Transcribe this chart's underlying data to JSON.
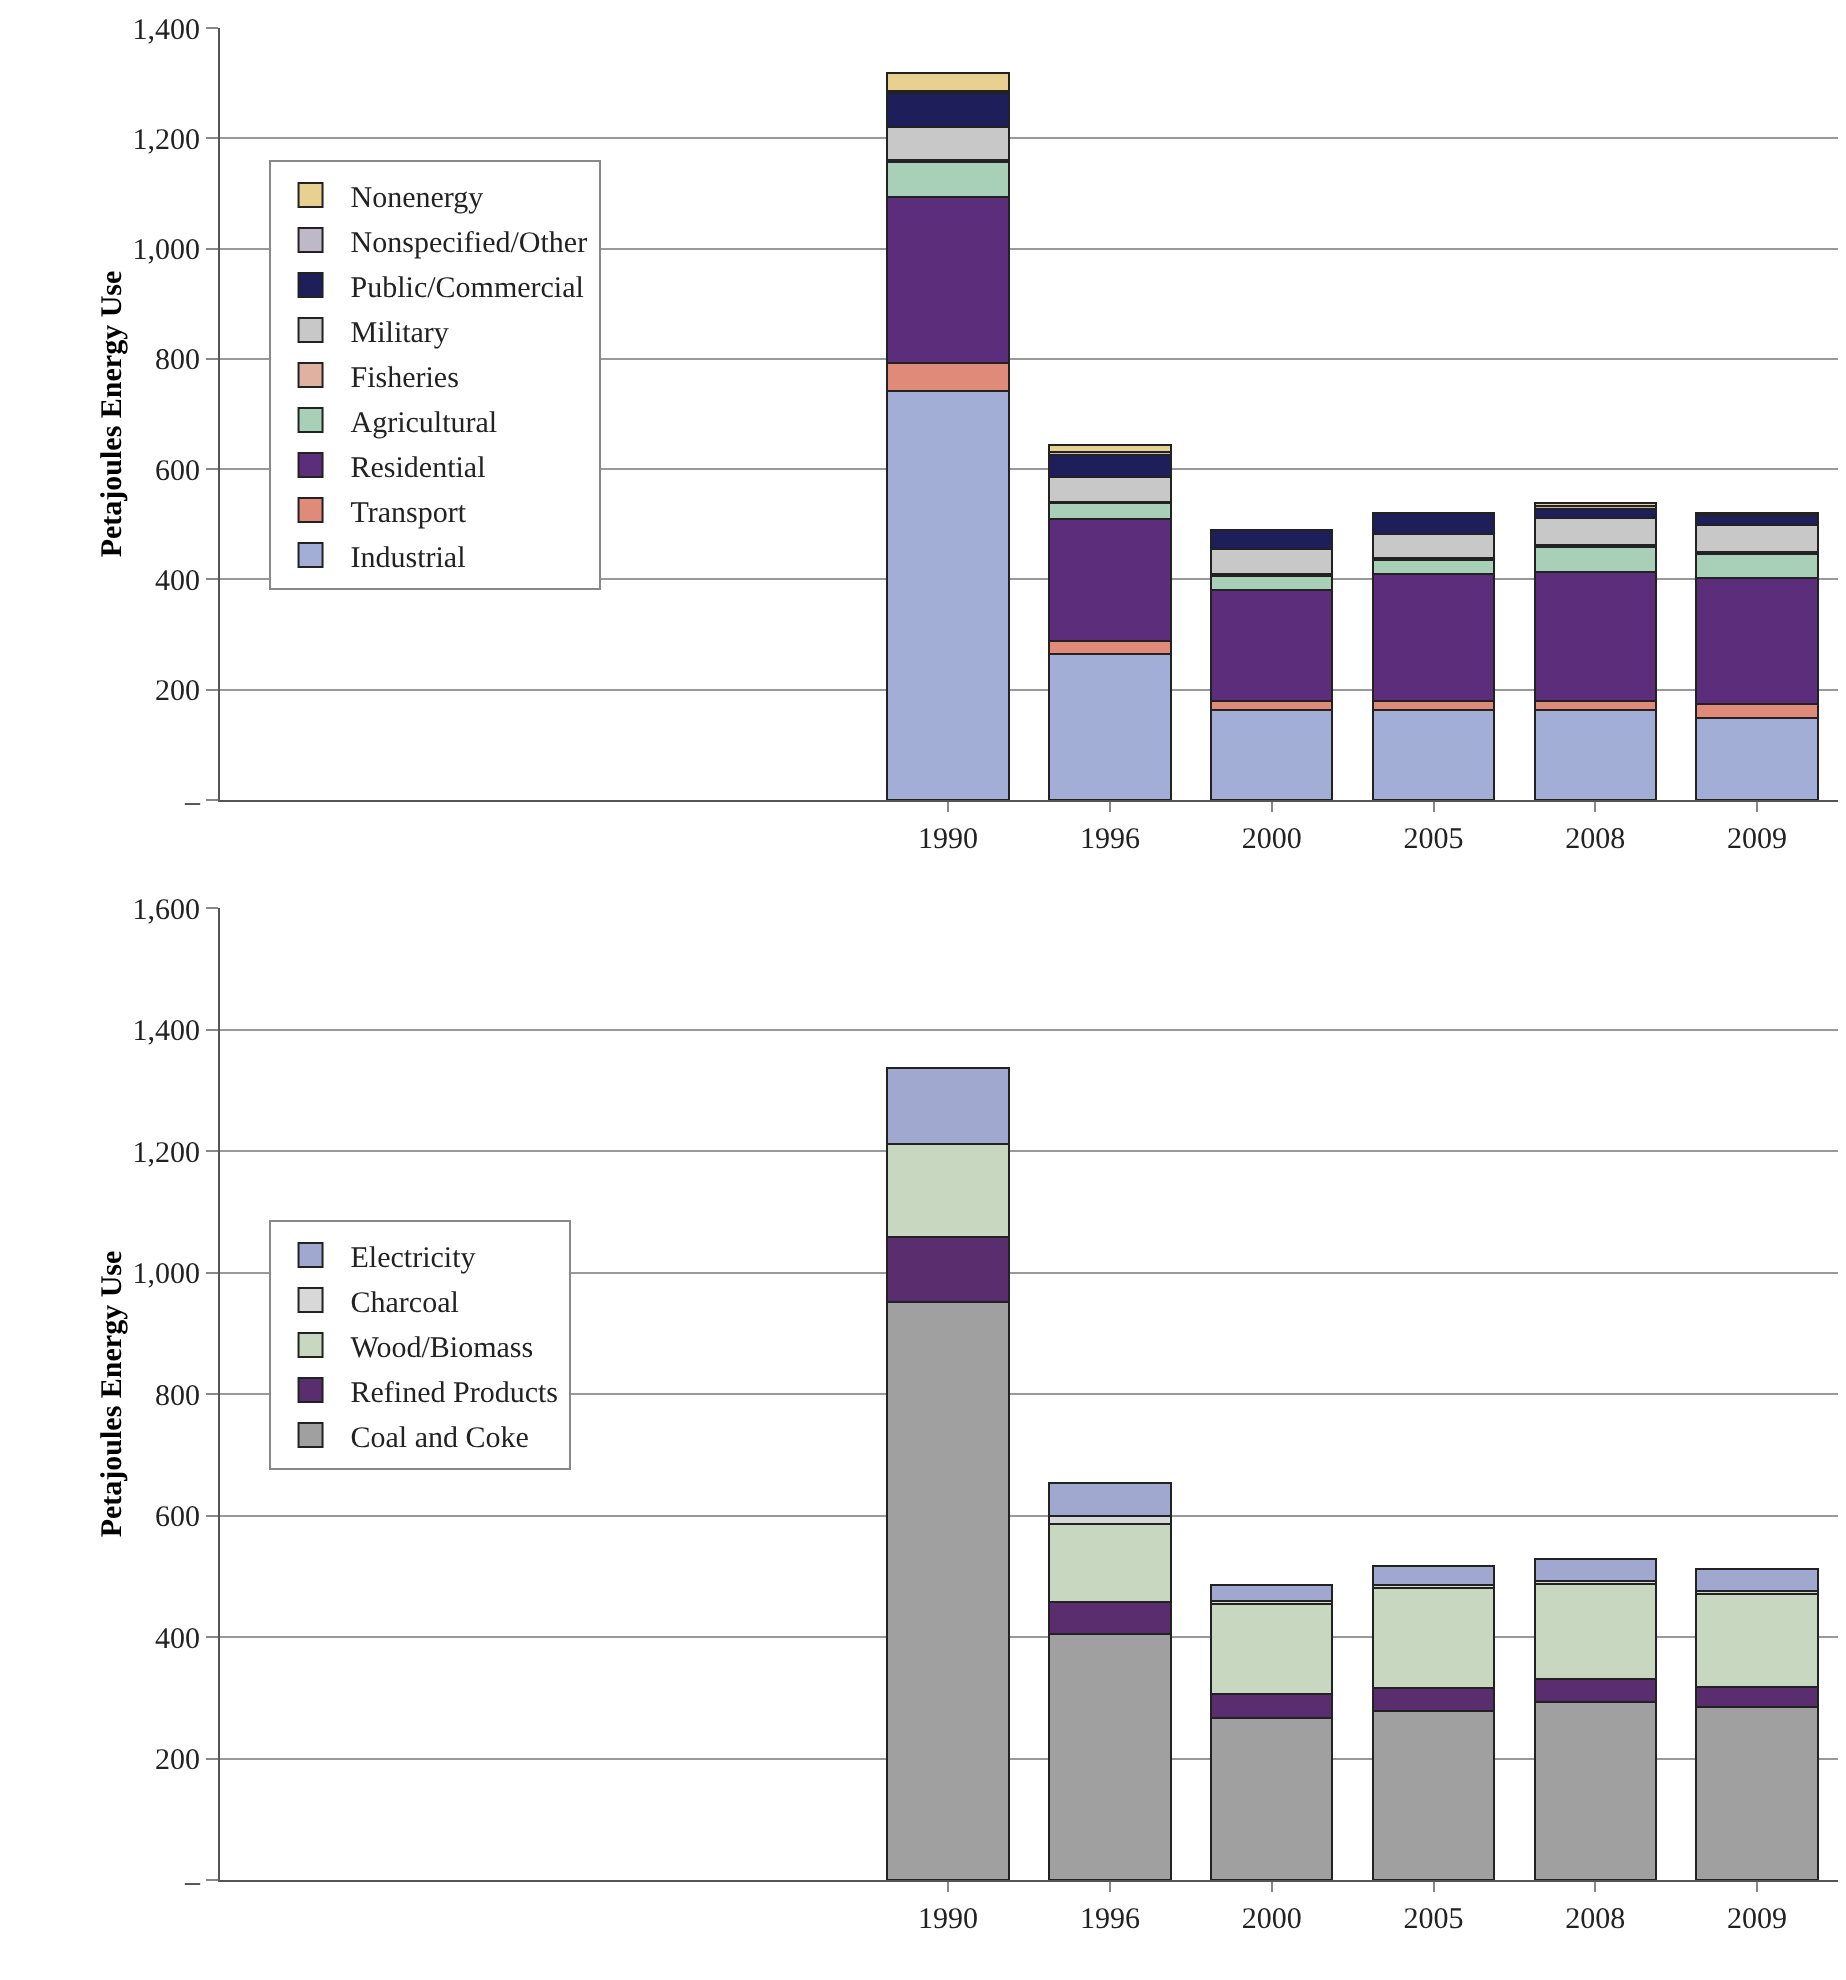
{
  "chart_data": [
    {
      "type": "bar",
      "stacked": true,
      "ylabel": "Petajoules Energy Use",
      "categories": [
        null,
        null,
        null,
        null,
        "1990",
        "1996",
        "2000",
        "2005",
        "2008",
        "2009"
      ],
      "ylim": [
        0,
        1400
      ],
      "yticks": [
        {
          "value": 0,
          "label": "–"
        },
        {
          "value": 200,
          "label": "200"
        },
        {
          "value": 400,
          "label": "400"
        },
        {
          "value": 600,
          "label": "600"
        },
        {
          "value": 800,
          "label": "800"
        },
        {
          "value": 1000,
          "label": "1,000"
        },
        {
          "value": 1200,
          "label": "1,200"
        },
        {
          "value": 1400,
          "label": "1,400"
        }
      ],
      "grid": "y",
      "legend": "left",
      "series": [
        {
          "name": "Industrial",
          "color": "#a3aed6",
          "values": [
            null,
            null,
            null,
            null,
            742,
            265,
            164,
            164,
            164,
            149
          ]
        },
        {
          "name": "Transport",
          "color": "#e08a7a",
          "values": [
            null,
            null,
            null,
            null,
            51,
            24,
            16,
            16,
            16,
            25
          ]
        },
        {
          "name": "Residential",
          "color": "#5b2d7a",
          "values": [
            null,
            null,
            null,
            null,
            301,
            221,
            200,
            229,
            234,
            228
          ]
        },
        {
          "name": "Agricultural",
          "color": "#a8d0b8",
          "values": [
            null,
            null,
            null,
            null,
            63,
            28,
            27,
            26,
            45,
            45
          ]
        },
        {
          "name": "Fisheries",
          "color": "#e0b0a0",
          "values": [
            null,
            null,
            null,
            null,
            4,
            3,
            3,
            3,
            3,
            3
          ]
        },
        {
          "name": "Military",
          "color": "#c8c8c8",
          "values": [
            null,
            null,
            null,
            null,
            60,
            45,
            45,
            45,
            49,
            48
          ]
        },
        {
          "name": "Public/Commercial",
          "color": "#1e1e5a",
          "values": [
            null,
            null,
            null,
            null,
            61,
            39,
            34,
            37,
            17,
            18
          ]
        },
        {
          "name": "Nonspecified/Other",
          "color": "#c0b8c8",
          "values": [
            null,
            null,
            null,
            null,
            3,
            6,
            null,
            null,
            6,
            4
          ]
        },
        {
          "name": "Nonenergy",
          "color": "#e8d090",
          "values": [
            null,
            null,
            null,
            null,
            34,
            13,
            null,
            null,
            4,
            null
          ]
        }
      ]
    },
    {
      "type": "bar",
      "stacked": true,
      "ylabel": "Petajoules Energy Use",
      "categories": [
        null,
        null,
        null,
        null,
        "1990",
        "1996",
        "2000",
        "2005",
        "2008",
        "2009"
      ],
      "ylim": [
        0,
        1600
      ],
      "yticks": [
        {
          "value": 0,
          "label": "–"
        },
        {
          "value": 200,
          "label": "200"
        },
        {
          "value": 400,
          "label": "400"
        },
        {
          "value": 600,
          "label": "600"
        },
        {
          "value": 800,
          "label": "800"
        },
        {
          "value": 1000,
          "label": "1,000"
        },
        {
          "value": 1200,
          "label": "1,200"
        },
        {
          "value": 1400,
          "label": "1,400"
        },
        {
          "value": 1600,
          "label": "1,600"
        }
      ],
      "grid": "y",
      "legend": "left",
      "series": [
        {
          "name": "Coal and Coke",
          "color": "#a0a0a0",
          "values": [
            null,
            null,
            null,
            null,
            952,
            405,
            267,
            278,
            293,
            285
          ]
        },
        {
          "name": "Refined Products",
          "color": "#5a2d6e",
          "values": [
            null,
            null,
            null,
            null,
            107,
            52,
            40,
            38,
            38,
            33
          ]
        },
        {
          "name": "Wood/Biomass",
          "color": "#c8d8c0",
          "values": [
            null,
            null,
            null,
            null,
            152,
            129,
            148,
            164,
            156,
            153
          ]
        },
        {
          "name": "Charcoal",
          "color": "#d8d8d8",
          "values": [
            null,
            null,
            null,
            null,
            null,
            13,
            5,
            6,
            6,
            4
          ]
        },
        {
          "name": "Electricity",
          "color": "#a0a8d0",
          "values": [
            null,
            null,
            null,
            null,
            126,
            55,
            26,
            31,
            35,
            37
          ]
        }
      ]
    }
  ]
}
